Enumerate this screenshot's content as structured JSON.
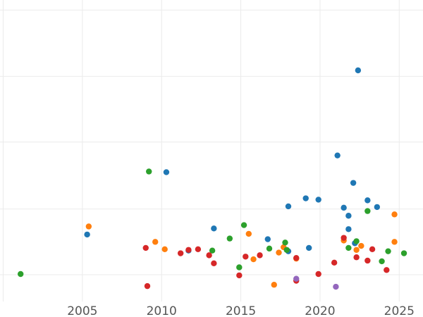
{
  "chart_data": {
    "type": "scatter",
    "title": "",
    "xlabel": "",
    "ylabel": "",
    "xlim": [
      1999.8,
      2026.5
    ],
    "ylim": [
      0,
      450
    ],
    "x_ticks": [
      2005,
      2010,
      2015,
      2020,
      2025
    ],
    "x_tick_labels": [
      "2005",
      "2010",
      "2015",
      "2020",
      "2025"
    ],
    "y_gridlines": [
      40,
      138,
      238,
      336,
      435
    ],
    "grid": true,
    "legend": "none",
    "series": [
      {
        "color": "#1f77b4",
        "points": [
          {
            "x": 2005.3,
            "y": 100
          },
          {
            "x": 2010.3,
            "y": 193
          },
          {
            "x": 2011.7,
            "y": 76
          },
          {
            "x": 2013.3,
            "y": 109
          },
          {
            "x": 2016.7,
            "y": 93
          },
          {
            "x": 2018.0,
            "y": 142
          },
          {
            "x": 2018.0,
            "y": 75
          },
          {
            "x": 2019.1,
            "y": 154
          },
          {
            "x": 2019.3,
            "y": 80
          },
          {
            "x": 2019.9,
            "y": 152
          },
          {
            "x": 2021.1,
            "y": 218
          },
          {
            "x": 2021.5,
            "y": 140
          },
          {
            "x": 2021.8,
            "y": 128
          },
          {
            "x": 2021.8,
            "y": 108
          },
          {
            "x": 2022.1,
            "y": 177
          },
          {
            "x": 2022.2,
            "y": 87
          },
          {
            "x": 2022.4,
            "y": 345
          },
          {
            "x": 2023.0,
            "y": 151
          },
          {
            "x": 2023.6,
            "y": 141
          }
        ]
      },
      {
        "color": "#ff7f0e",
        "points": [
          {
            "x": 2005.4,
            "y": 112
          },
          {
            "x": 2009.6,
            "y": 89
          },
          {
            "x": 2010.2,
            "y": 78
          },
          {
            "x": 2015.5,
            "y": 101
          },
          {
            "x": 2015.8,
            "y": 63
          },
          {
            "x": 2017.1,
            "y": 25
          },
          {
            "x": 2017.4,
            "y": 73
          },
          {
            "x": 2017.7,
            "y": 81
          },
          {
            "x": 2018.5,
            "y": 64
          },
          {
            "x": 2021.5,
            "y": 91
          },
          {
            "x": 2022.3,
            "y": 77
          },
          {
            "x": 2022.6,
            "y": 83
          },
          {
            "x": 2024.7,
            "y": 130
          },
          {
            "x": 2024.7,
            "y": 89
          }
        ]
      },
      {
        "color": "#2ca02c",
        "points": [
          {
            "x": 2001.1,
            "y": 41
          },
          {
            "x": 2009.2,
            "y": 194
          },
          {
            "x": 2013.2,
            "y": 76
          },
          {
            "x": 2014.3,
            "y": 94
          },
          {
            "x": 2014.9,
            "y": 51
          },
          {
            "x": 2015.2,
            "y": 114
          },
          {
            "x": 2016.8,
            "y": 79
          },
          {
            "x": 2017.8,
            "y": 88
          },
          {
            "x": 2017.9,
            "y": 77
          },
          {
            "x": 2021.8,
            "y": 80
          },
          {
            "x": 2022.3,
            "y": 90
          },
          {
            "x": 2023.0,
            "y": 135
          },
          {
            "x": 2023.9,
            "y": 60
          },
          {
            "x": 2024.3,
            "y": 75
          },
          {
            "x": 2025.3,
            "y": 72
          }
        ]
      },
      {
        "color": "#d62728",
        "points": [
          {
            "x": 2009.0,
            "y": 80
          },
          {
            "x": 2009.1,
            "y": 23
          },
          {
            "x": 2011.2,
            "y": 72
          },
          {
            "x": 2011.7,
            "y": 77
          },
          {
            "x": 2012.3,
            "y": 78
          },
          {
            "x": 2013.0,
            "y": 69
          },
          {
            "x": 2013.3,
            "y": 57
          },
          {
            "x": 2014.9,
            "y": 39
          },
          {
            "x": 2015.3,
            "y": 67
          },
          {
            "x": 2016.2,
            "y": 69
          },
          {
            "x": 2018.5,
            "y": 65
          },
          {
            "x": 2018.5,
            "y": 31
          },
          {
            "x": 2019.9,
            "y": 41
          },
          {
            "x": 2020.9,
            "y": 58
          },
          {
            "x": 2021.5,
            "y": 95
          },
          {
            "x": 2022.3,
            "y": 66
          },
          {
            "x": 2023.0,
            "y": 61
          },
          {
            "x": 2023.3,
            "y": 78
          },
          {
            "x": 2024.2,
            "y": 47
          }
        ]
      },
      {
        "color": "#9467bd",
        "points": [
          {
            "x": 2018.5,
            "y": 34
          },
          {
            "x": 2021.0,
            "y": 22
          }
        ]
      }
    ]
  }
}
